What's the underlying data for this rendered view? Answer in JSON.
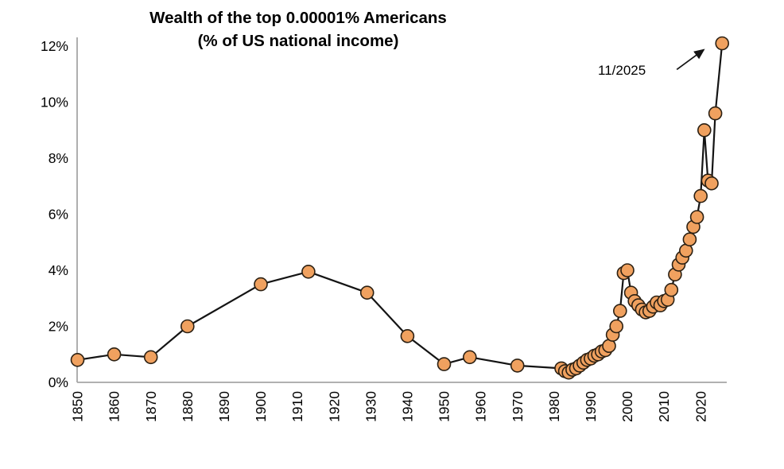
{
  "title": {
    "line1": "Wealth of the top 0.00001% Americans",
    "line2": "(% of US national income)"
  },
  "annotation": {
    "label": "11/2025"
  },
  "colors": {
    "marker_fill": "#F0A15F",
    "marker_stroke": "#2B2013",
    "line": "#141414",
    "axis": "#A6A6A6",
    "text": "#000000"
  },
  "chart_data": {
    "type": "line",
    "title": "Wealth of the top 0.00001% Americans",
    "subtitle": "(% of US national income)",
    "xlabel": "",
    "ylabel": "",
    "xlim": [
      1848,
      2027
    ],
    "ylim": [
      0,
      12
    ],
    "grid": false,
    "legend": "none",
    "yticks": [
      0,
      2,
      4,
      6,
      8,
      10,
      12
    ],
    "ytick_labels": [
      "0%",
      "2%",
      "4%",
      "6%",
      "8%",
      "10%",
      "12%"
    ],
    "xticks": [
      1850,
      1860,
      1870,
      1880,
      1890,
      1900,
      1910,
      1920,
      1930,
      1940,
      1950,
      1960,
      1970,
      1980,
      1990,
      2000,
      2010,
      2020
    ],
    "xtick_labels": [
      "1850",
      "1860",
      "1870",
      "1880",
      "1890",
      "1900",
      "1910",
      "1920",
      "1930",
      "1940",
      "1950",
      "1960",
      "1970",
      "1980",
      "1990",
      "2000",
      "2010",
      "2020"
    ],
    "annotation": {
      "label": "11/2025",
      "points_to_x": 2025.85,
      "points_to_y": 12.1
    },
    "series": [
      {
        "name": "Top 0.00001% wealth (% of US national income)",
        "points": [
          [
            1850,
            0.8
          ],
          [
            1860,
            1.0
          ],
          [
            1870,
            0.9
          ],
          [
            1880,
            2.0
          ],
          [
            1900,
            3.5
          ],
          [
            1913,
            3.95
          ],
          [
            1929,
            3.2
          ],
          [
            1940,
            1.65
          ],
          [
            1950,
            0.65
          ],
          [
            1957,
            0.9
          ],
          [
            1970,
            0.6
          ],
          [
            1982,
            0.5
          ],
          [
            1983,
            0.4
          ],
          [
            1984,
            0.35
          ],
          [
            1985,
            0.45
          ],
          [
            1986,
            0.5
          ],
          [
            1987,
            0.6
          ],
          [
            1988,
            0.7
          ],
          [
            1989,
            0.8
          ],
          [
            1990,
            0.85
          ],
          [
            1991,
            0.95
          ],
          [
            1992,
            1.0
          ],
          [
            1993,
            1.1
          ],
          [
            1994,
            1.15
          ],
          [
            1995,
            1.3
          ],
          [
            1996,
            1.7
          ],
          [
            1997,
            2.0
          ],
          [
            1998,
            2.55
          ],
          [
            1999,
            3.9
          ],
          [
            2000,
            4.0
          ],
          [
            2001,
            3.2
          ],
          [
            2002,
            2.9
          ],
          [
            2003,
            2.75
          ],
          [
            2004,
            2.6
          ],
          [
            2005,
            2.5
          ],
          [
            2006,
            2.55
          ],
          [
            2007,
            2.7
          ],
          [
            2008,
            2.85
          ],
          [
            2009,
            2.75
          ],
          [
            2010,
            2.9
          ],
          [
            2011,
            2.95
          ],
          [
            2012,
            3.3
          ],
          [
            2013,
            3.85
          ],
          [
            2014,
            4.2
          ],
          [
            2015,
            4.45
          ],
          [
            2016,
            4.7
          ],
          [
            2017,
            5.1
          ],
          [
            2018,
            5.55
          ],
          [
            2019,
            5.9
          ],
          [
            2020,
            6.65
          ],
          [
            2021,
            9.0
          ],
          [
            2022,
            7.2
          ],
          [
            2023,
            7.1
          ],
          [
            2024,
            9.6
          ],
          [
            2025.85,
            12.1
          ]
        ]
      }
    ]
  }
}
